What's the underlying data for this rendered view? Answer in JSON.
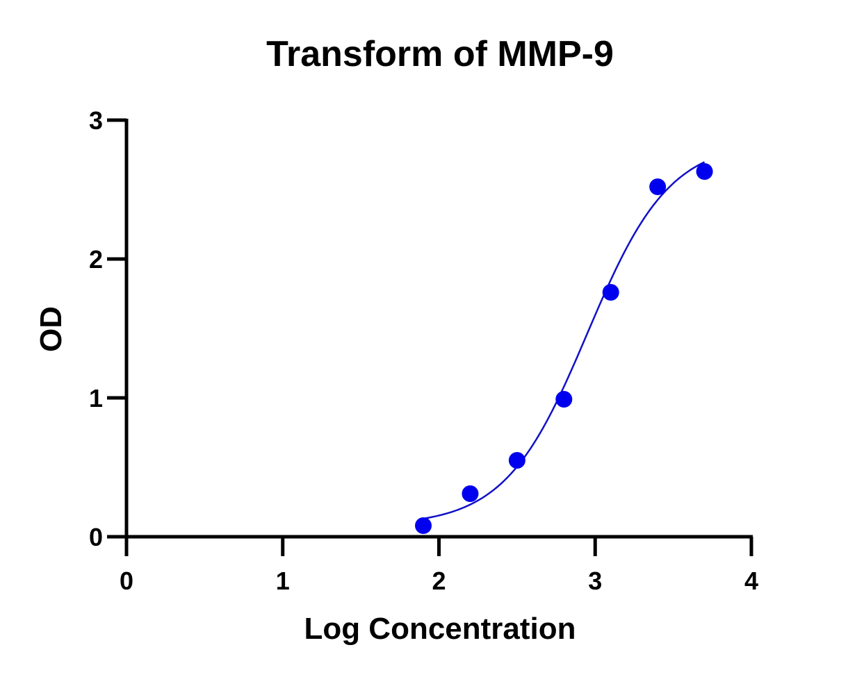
{
  "chart_data": {
    "type": "scatter",
    "title": "Transform of MMP-9",
    "xlabel": "Log Concentration",
    "ylabel": "OD",
    "xlim": [
      0,
      4
    ],
    "ylim": [
      0,
      3
    ],
    "x_ticks": [
      0,
      1,
      2,
      3,
      4
    ],
    "y_ticks": [
      0,
      1,
      2,
      3
    ],
    "x_tick_labels": [
      "0",
      "1",
      "2",
      "3",
      "4"
    ],
    "y_tick_labels": [
      "0",
      "1",
      "2",
      "3"
    ],
    "grid": false,
    "legend": "none",
    "series": [
      {
        "x": [
          1.9,
          2.2,
          2.5,
          2.8,
          3.1,
          3.4,
          3.7
        ],
        "y": [
          0.08,
          0.31,
          0.55,
          0.99,
          1.76,
          2.52,
          2.63
        ],
        "marker": "circle",
        "color": "#0000ee"
      }
    ],
    "fit_curve": {
      "model": "four-parameter logistic",
      "x_range": [
        1.9,
        3.7
      ],
      "bottom": 0.08,
      "top": 2.85,
      "log_ec50": 2.95,
      "hill_slope": 1.65,
      "color": "#1010c8"
    }
  }
}
